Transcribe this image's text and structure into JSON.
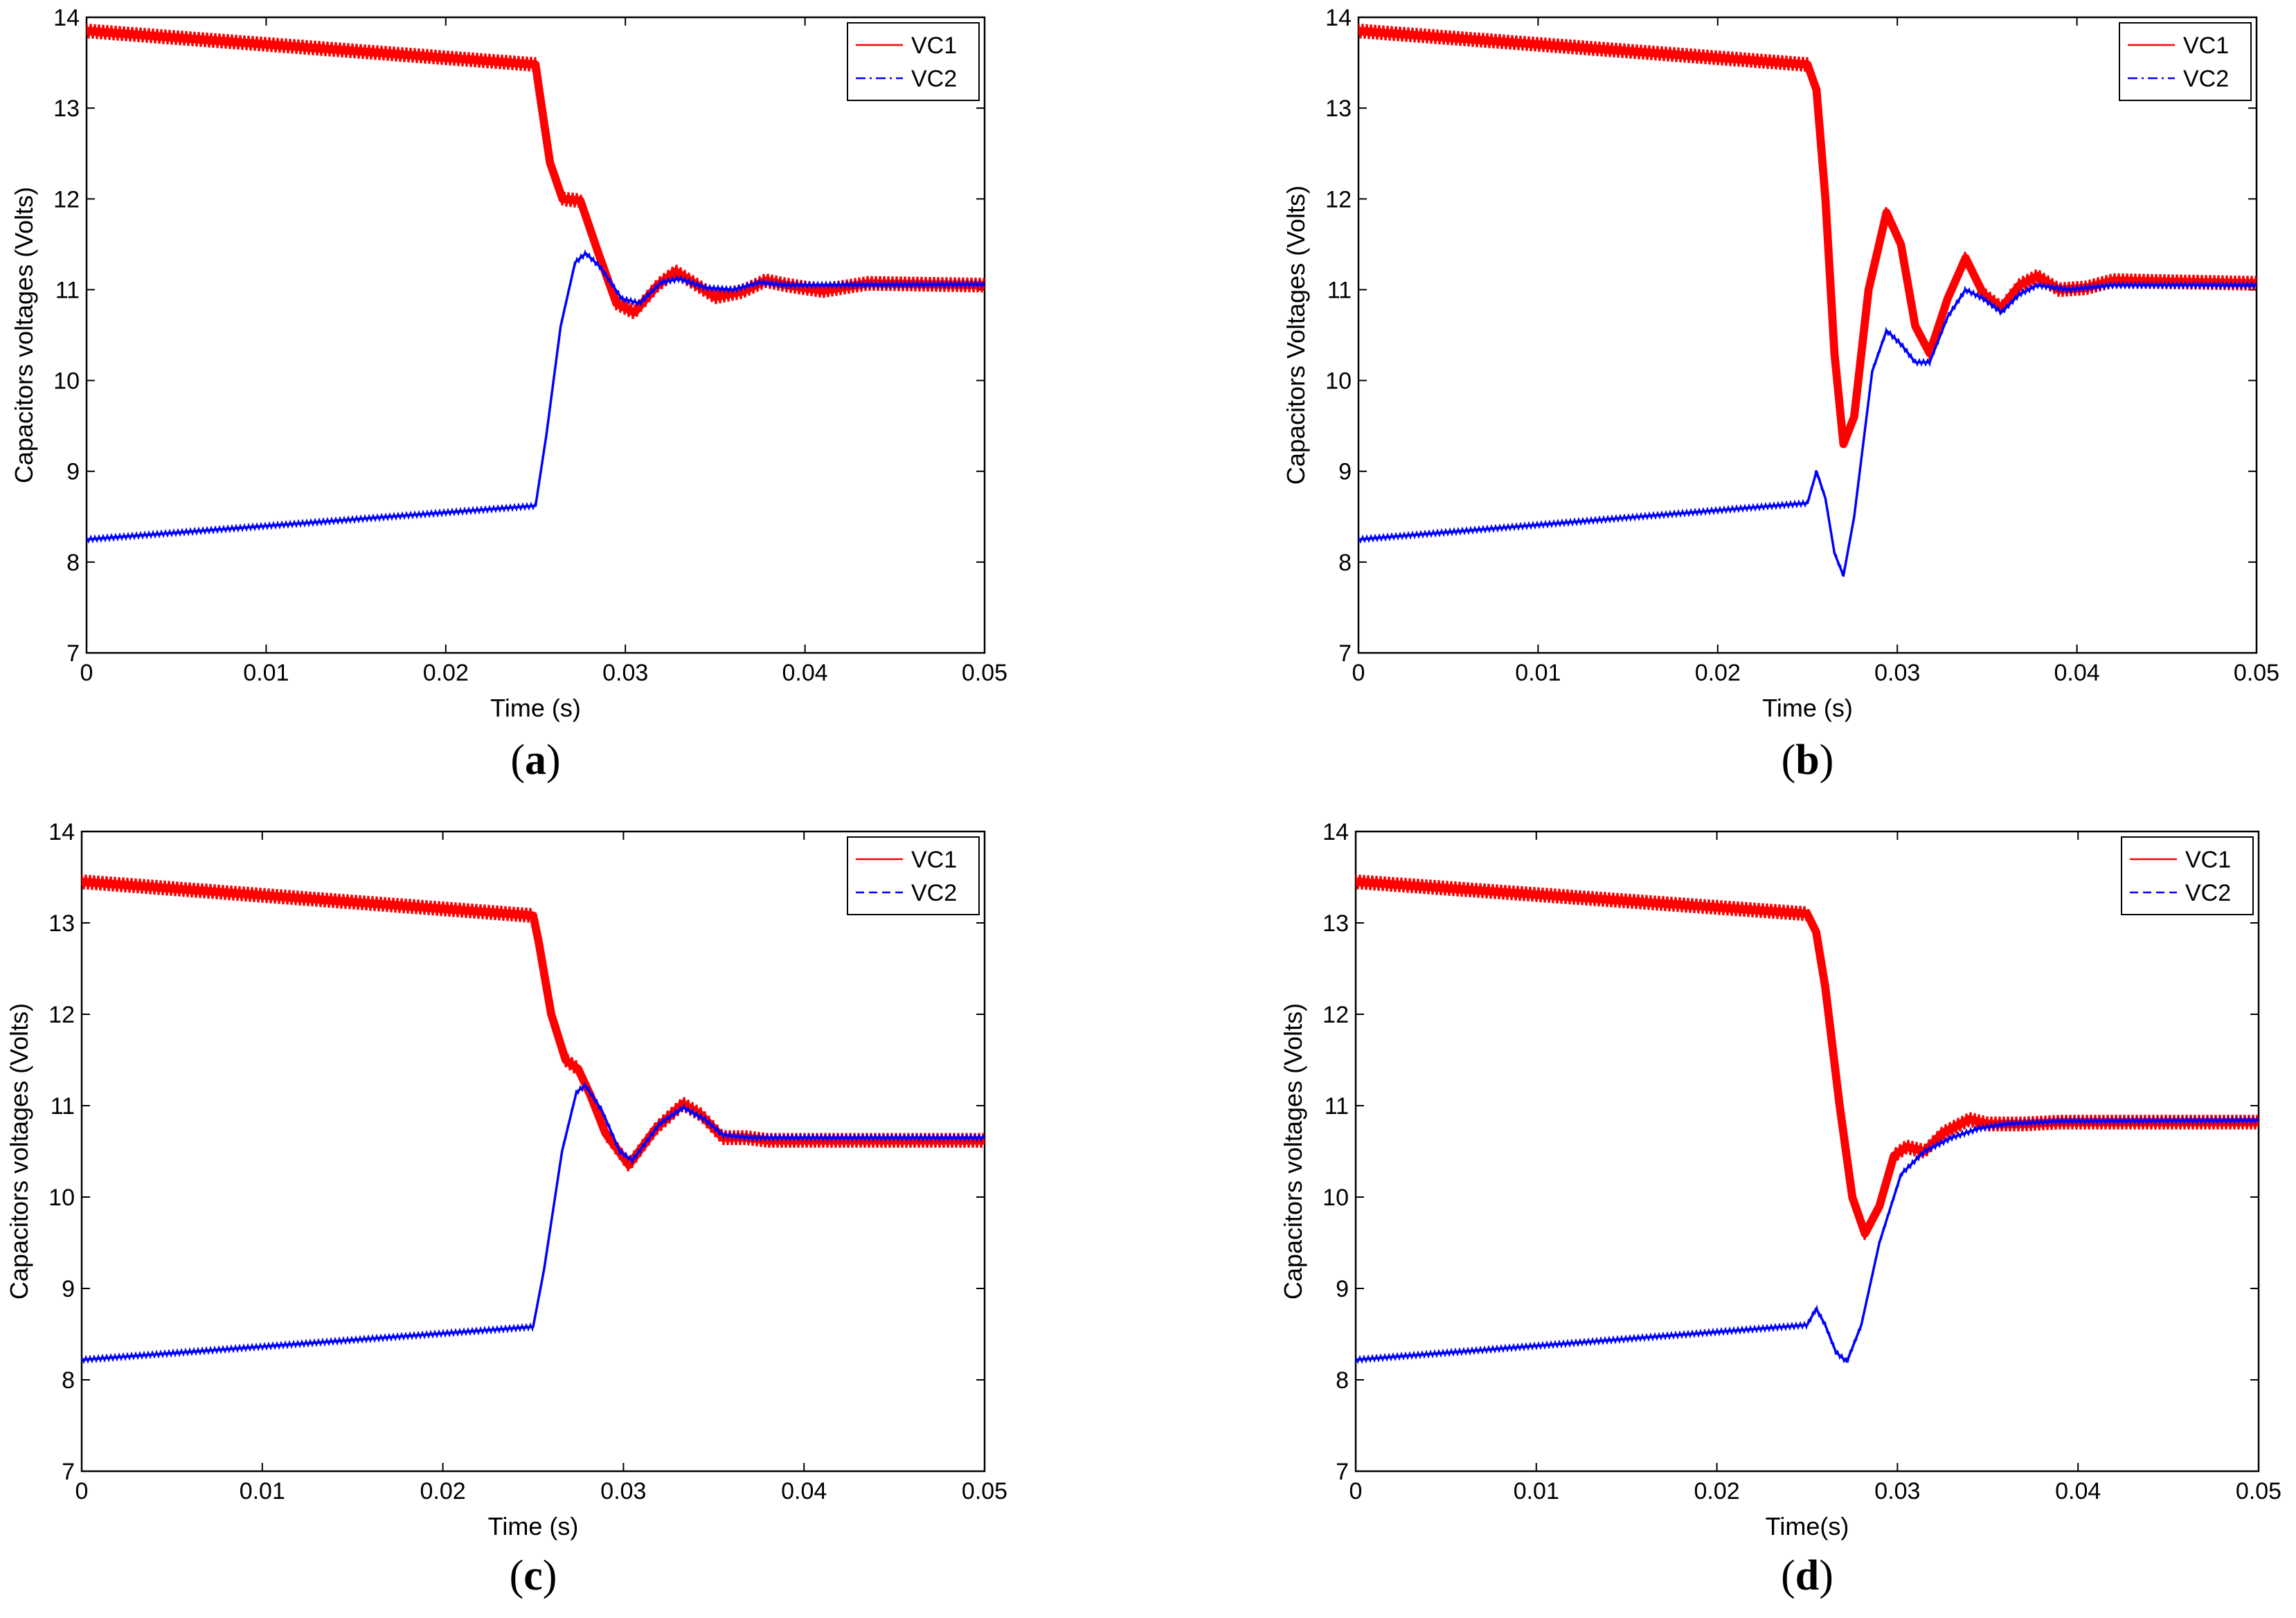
{
  "figure": {
    "colors": {
      "vc1": "#ff0000",
      "vc2": "#0000ff",
      "axis": "#000000"
    }
  },
  "chart_data": [
    {
      "id": "a",
      "type": "line",
      "caption_letter": "a",
      "xlabel": "Time (s)",
      "ylabel": "Capacitors voltages (Volts)",
      "xlim": [
        0,
        0.05
      ],
      "ylim": [
        7,
        14
      ],
      "xticks": [
        "0",
        "0.01",
        "0.02",
        "0.03",
        "0.04",
        "0.05"
      ],
      "yticks": [
        "7",
        "8",
        "9",
        "10",
        "11",
        "12",
        "13",
        "14"
      ],
      "legend": {
        "position": "top-right",
        "entries": [
          "VC1",
          "VC2"
        ]
      },
      "series": [
        {
          "name": "VC1",
          "style": "solid",
          "ripple": 0.1,
          "points": [
            [
              0,
              13.85
            ],
            [
              0.025,
              13.48
            ],
            [
              0.0252,
              13.2
            ],
            [
              0.0258,
              12.4
            ],
            [
              0.0265,
              12.0
            ],
            [
              0.0275,
              11.98
            ],
            [
              0.0285,
              11.4
            ],
            [
              0.0295,
              10.85
            ],
            [
              0.0305,
              10.75
            ],
            [
              0.0318,
              11.05
            ],
            [
              0.0328,
              11.2
            ],
            [
              0.034,
              11.05
            ],
            [
              0.035,
              10.92
            ],
            [
              0.0365,
              10.98
            ],
            [
              0.0378,
              11.1
            ],
            [
              0.039,
              11.05
            ],
            [
              0.041,
              10.99
            ],
            [
              0.0435,
              11.07
            ],
            [
              0.05,
              11.05
            ]
          ]
        },
        {
          "name": "VC2",
          "style": "dashdot",
          "ripple": 0.04,
          "points": [
            [
              0,
              8.25
            ],
            [
              0.025,
              8.62
            ],
            [
              0.0256,
              9.4
            ],
            [
              0.0264,
              10.6
            ],
            [
              0.0272,
              11.3
            ],
            [
              0.0278,
              11.4
            ],
            [
              0.0286,
              11.25
            ],
            [
              0.0298,
              10.9
            ],
            [
              0.0308,
              10.85
            ],
            [
              0.032,
              11.08
            ],
            [
              0.033,
              11.12
            ],
            [
              0.0345,
              11.02
            ],
            [
              0.036,
              11.0
            ],
            [
              0.0375,
              11.08
            ],
            [
              0.039,
              11.05
            ],
            [
              0.05,
              11.06
            ]
          ]
        }
      ]
    },
    {
      "id": "b",
      "type": "line",
      "caption_letter": "b",
      "xlabel": "Time (s)",
      "ylabel": "Capacitors Voltages (Volts)",
      "xlim": [
        0,
        0.05
      ],
      "ylim": [
        7,
        14
      ],
      "xticks": [
        "0",
        "0.01",
        "0.02",
        "0.03",
        "0.04",
        "0.05"
      ],
      "yticks": [
        "7",
        "8",
        "9",
        "10",
        "11",
        "12",
        "13",
        "14"
      ],
      "legend": {
        "position": "top-right",
        "entries": [
          "VC1",
          "VC2"
        ]
      },
      "series": [
        {
          "name": "VC1",
          "style": "solid",
          "ripple": 0.1,
          "points": [
            [
              0,
              13.85
            ],
            [
              0.025,
              13.48
            ],
            [
              0.0255,
              13.2
            ],
            [
              0.026,
              12.0
            ],
            [
              0.0265,
              10.3
            ],
            [
              0.027,
              9.3
            ],
            [
              0.0276,
              9.6
            ],
            [
              0.0284,
              11.0
            ],
            [
              0.0294,
              11.85
            ],
            [
              0.0302,
              11.5
            ],
            [
              0.031,
              10.6
            ],
            [
              0.0318,
              10.3
            ],
            [
              0.0328,
              10.9
            ],
            [
              0.0338,
              11.35
            ],
            [
              0.0348,
              10.95
            ],
            [
              0.0358,
              10.8
            ],
            [
              0.0368,
              11.05
            ],
            [
              0.0378,
              11.15
            ],
            [
              0.039,
              11.0
            ],
            [
              0.0405,
              11.02
            ],
            [
              0.042,
              11.1
            ],
            [
              0.05,
              11.07
            ]
          ]
        },
        {
          "name": "VC2",
          "style": "dashdot",
          "ripple": 0.04,
          "points": [
            [
              0,
              8.25
            ],
            [
              0.025,
              8.65
            ],
            [
              0.0255,
              9.0
            ],
            [
              0.026,
              8.7
            ],
            [
              0.0265,
              8.1
            ],
            [
              0.027,
              7.85
            ],
            [
              0.0276,
              8.5
            ],
            [
              0.0286,
              10.1
            ],
            [
              0.0294,
              10.55
            ],
            [
              0.0302,
              10.4
            ],
            [
              0.031,
              10.2
            ],
            [
              0.0318,
              10.2
            ],
            [
              0.0328,
              10.7
            ],
            [
              0.0338,
              11.0
            ],
            [
              0.0348,
              10.9
            ],
            [
              0.0358,
              10.75
            ],
            [
              0.0368,
              10.95
            ],
            [
              0.0378,
              11.05
            ],
            [
              0.0395,
              11.0
            ],
            [
              0.042,
              11.05
            ],
            [
              0.05,
              11.05
            ]
          ]
        }
      ]
    },
    {
      "id": "c",
      "type": "line",
      "caption_letter": "c",
      "xlabel": "Time (s)",
      "ylabel": "Capacitors voltages (Volts)",
      "xlim": [
        0,
        0.05
      ],
      "ylim": [
        7,
        14
      ],
      "xticks": [
        "0",
        "0.01",
        "0.02",
        "0.03",
        "0.04",
        "0.05"
      ],
      "yticks": [
        "7",
        "8",
        "9",
        "10",
        "11",
        "12",
        "13",
        "14"
      ],
      "legend": {
        "position": "top-right",
        "entries": [
          "VC1",
          "VC2"
        ]
      },
      "series": [
        {
          "name": "VC1",
          "style": "solid",
          "ripple": 0.1,
          "points": [
            [
              0,
              13.45
            ],
            [
              0.025,
              13.08
            ],
            [
              0.0253,
              12.8
            ],
            [
              0.026,
              12.0
            ],
            [
              0.0268,
              11.5
            ],
            [
              0.0275,
              11.4
            ],
            [
              0.0282,
              11.1
            ],
            [
              0.029,
              10.7
            ],
            [
              0.0303,
              10.35
            ],
            [
              0.0318,
              10.75
            ],
            [
              0.0333,
              11.02
            ],
            [
              0.0343,
              10.9
            ],
            [
              0.0355,
              10.65
            ],
            [
              0.0368,
              10.65
            ],
            [
              0.038,
              10.62
            ],
            [
              0.05,
              10.62
            ]
          ]
        },
        {
          "name": "VC2",
          "style": "dashed",
          "ripple": 0.04,
          "points": [
            [
              0,
              8.22
            ],
            [
              0.025,
              8.58
            ],
            [
              0.0256,
              9.2
            ],
            [
              0.0266,
              10.5
            ],
            [
              0.0274,
              11.15
            ],
            [
              0.0279,
              11.22
            ],
            [
              0.0288,
              10.95
            ],
            [
              0.0298,
              10.5
            ],
            [
              0.0305,
              10.4
            ],
            [
              0.032,
              10.8
            ],
            [
              0.0333,
              10.98
            ],
            [
              0.0345,
              10.85
            ],
            [
              0.0355,
              10.68
            ],
            [
              0.037,
              10.65
            ],
            [
              0.05,
              10.65
            ]
          ]
        }
      ]
    },
    {
      "id": "d",
      "type": "line",
      "caption_letter": "d",
      "xlabel": "Time(s)",
      "ylabel": "Capacitors voltages (Volts)",
      "xlim": [
        0,
        0.05
      ],
      "ylim": [
        7,
        14
      ],
      "xticks": [
        "0",
        "0.01",
        "0.02",
        "0.03",
        "0.04",
        "0.05"
      ],
      "yticks": [
        "7",
        "8",
        "9",
        "10",
        "11",
        "12",
        "13",
        "14"
      ],
      "legend": {
        "position": "top-right",
        "entries": [
          "VC1",
          "VC2"
        ]
      },
      "series": [
        {
          "name": "VC1",
          "style": "solid",
          "ripple": 0.1,
          "points": [
            [
              0,
              13.45
            ],
            [
              0.025,
              13.1
            ],
            [
              0.0255,
              12.9
            ],
            [
              0.026,
              12.3
            ],
            [
              0.0268,
              11.0
            ],
            [
              0.0275,
              10.0
            ],
            [
              0.0282,
              9.6
            ],
            [
              0.029,
              9.9
            ],
            [
              0.0298,
              10.45
            ],
            [
              0.0305,
              10.55
            ],
            [
              0.0315,
              10.5
            ],
            [
              0.0325,
              10.7
            ],
            [
              0.034,
              10.85
            ],
            [
              0.035,
              10.8
            ],
            [
              0.037,
              10.8
            ],
            [
              0.039,
              10.82
            ],
            [
              0.05,
              10.82
            ]
          ]
        },
        {
          "name": "VC2",
          "style": "dashed",
          "ripple": 0.04,
          "points": [
            [
              0,
              8.22
            ],
            [
              0.025,
              8.6
            ],
            [
              0.0255,
              8.78
            ],
            [
              0.026,
              8.6
            ],
            [
              0.0266,
              8.3
            ],
            [
              0.0272,
              8.2
            ],
            [
              0.028,
              8.6
            ],
            [
              0.029,
              9.5
            ],
            [
              0.0302,
              10.25
            ],
            [
              0.0315,
              10.5
            ],
            [
              0.033,
              10.65
            ],
            [
              0.0345,
              10.75
            ],
            [
              0.036,
              10.8
            ],
            [
              0.039,
              10.83
            ],
            [
              0.05,
              10.84
            ]
          ]
        }
      ]
    }
  ]
}
